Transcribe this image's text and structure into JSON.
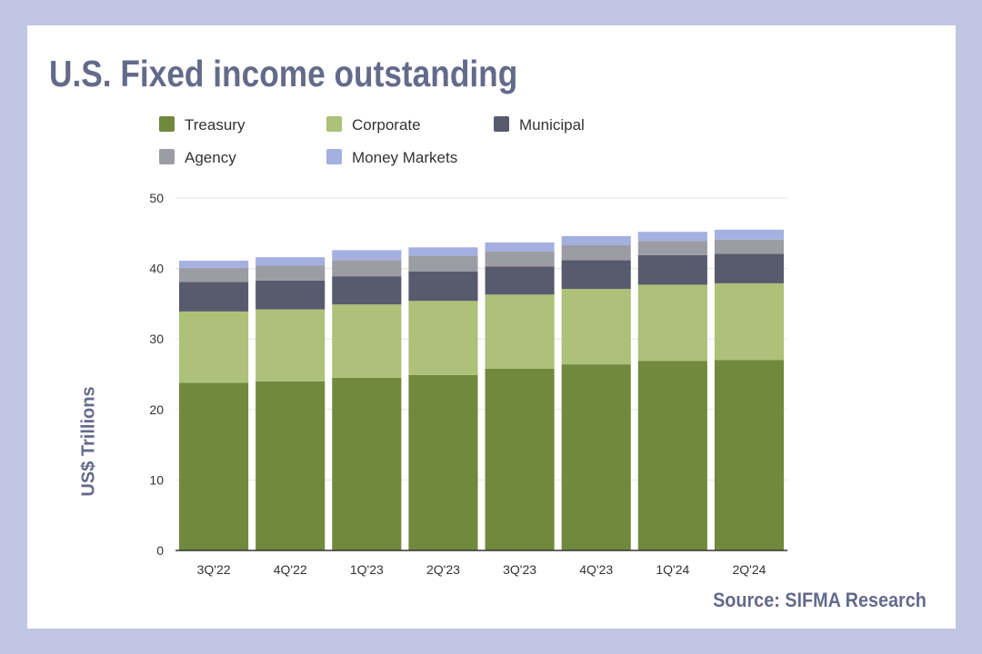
{
  "header": {
    "title": "U.S. Fixed income outstanding"
  },
  "footer": {
    "source": "Source: SIFMA Research"
  },
  "chart_data": {
    "type": "bar",
    "stacked": true,
    "title": "U.S. Fixed income outstanding",
    "xlabel": "",
    "ylabel": "US$ Trillions",
    "ylim": [
      0,
      50
    ],
    "yticks": [
      0,
      10,
      20,
      30,
      40,
      50
    ],
    "grid": true,
    "legend_position": "top",
    "categories": [
      "3Q'22",
      "4Q'22",
      "1Q'23",
      "2Q'23",
      "3Q'23",
      "4Q'23",
      "1Q'24",
      "2Q'24"
    ],
    "series": [
      {
        "name": "Treasury",
        "color": "#71893c",
        "values": [
          23.8,
          24.0,
          24.5,
          24.9,
          25.8,
          26.4,
          26.9,
          27.0
        ]
      },
      {
        "name": "Corporate",
        "color": "#adc178",
        "values": [
          10.1,
          10.2,
          10.4,
          10.5,
          10.5,
          10.7,
          10.8,
          10.9
        ]
      },
      {
        "name": "Municipal",
        "color": "#585b6e",
        "values": [
          4.2,
          4.1,
          4.0,
          4.2,
          4.0,
          4.1,
          4.2,
          4.2
        ]
      },
      {
        "name": "Agency",
        "color": "#9c9ca4",
        "values": [
          2.0,
          2.1,
          2.3,
          2.2,
          2.1,
          2.1,
          2.0,
          2.0
        ]
      },
      {
        "name": "Money Markets",
        "color": "#a4b0e0",
        "values": [
          1.0,
          1.2,
          1.4,
          1.2,
          1.3,
          1.3,
          1.3,
          1.4
        ]
      }
    ]
  }
}
